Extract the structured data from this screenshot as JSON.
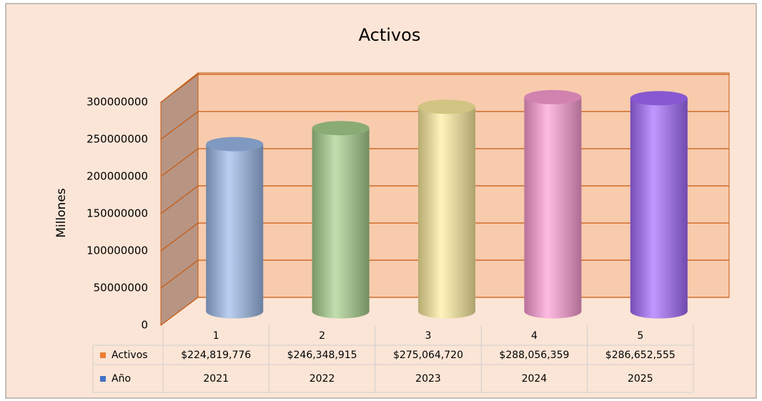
{
  "chart_data": {
    "type": "cylinder",
    "title": "Activos",
    "y_label": "Millones",
    "categories": [
      "1",
      "2",
      "3",
      "4",
      "5"
    ],
    "series": [
      {
        "name": "Activos",
        "color": "#ed7d31",
        "values": [
          224819776,
          246348915,
          275064720,
          288056359,
          286652555
        ],
        "value_labels": [
          "$224,819,776",
          "$246,348,915",
          "$275,064,720",
          "$288,056,359",
          "$286,652,555"
        ],
        "point_colors": [
          "#9dbbeb",
          "#a9d18e",
          "#ffef9f",
          "#ff9fd6",
          "#a56cff"
        ]
      },
      {
        "name": "Año",
        "color": "#4472c4",
        "values": [
          2021,
          2022,
          2023,
          2024,
          2025
        ]
      }
    ],
    "ylim": [
      0,
      300000000
    ],
    "yticks": [
      0,
      50000000,
      100000000,
      150000000,
      200000000,
      250000000,
      300000000
    ],
    "grid": true
  }
}
